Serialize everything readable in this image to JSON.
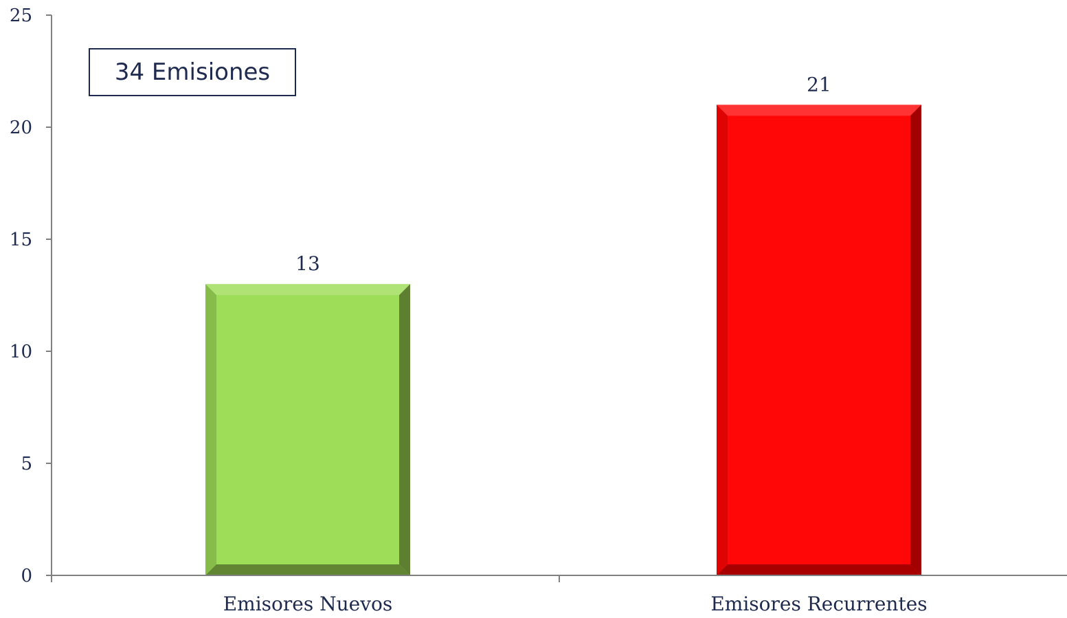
{
  "chart_data": {
    "type": "bar",
    "categories": [
      "Emisores Nuevos",
      "Emisores Recurrentes"
    ],
    "values": [
      13,
      21
    ],
    "data_labels": [
      "13",
      "21"
    ],
    "bar_colors": [
      "#9edd58",
      "#ff0707"
    ],
    "bar_shade_colors": [
      "#5e7f31",
      "#a30000"
    ],
    "ylim": [
      0,
      25
    ],
    "yticks": [
      0,
      5,
      10,
      15,
      20,
      25
    ],
    "ytick_labels": [
      "0",
      "5",
      "10",
      "15",
      "20",
      "25"
    ],
    "grid": false,
    "annotation": "34 Emisiones",
    "axis_color": "#808080",
    "text_color": "#1f2a4f"
  }
}
